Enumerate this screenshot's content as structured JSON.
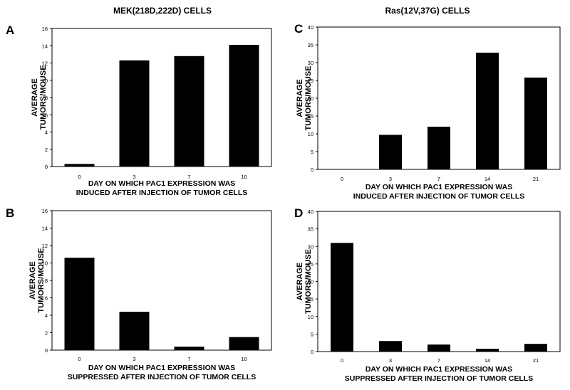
{
  "titles": {
    "left": "MEK(218D,222D) CELLS",
    "right": "Ras(12V,37G) CELLS"
  },
  "chart_data": [
    {
      "panel": "A",
      "type": "bar",
      "categories": [
        "0",
        "3",
        "7",
        "10"
      ],
      "values": [
        0.3,
        12.3,
        12.8,
        14.1
      ],
      "ylim": [
        0,
        16
      ],
      "yticks": [
        0,
        2,
        4,
        6,
        8,
        10,
        12,
        14,
        16
      ],
      "ylabel": [
        "AVERAGE",
        "TUMORS/MOUSE"
      ],
      "xlabel": [
        "DAY ON WHICH PAC1 EXPRESSION WAS",
        "INDUCED AFTER INJECTION OF TUMOR CELLS"
      ]
    },
    {
      "panel": "B",
      "type": "bar",
      "categories": [
        "0",
        "3",
        "7",
        "10"
      ],
      "values": [
        10.6,
        4.4,
        0.4,
        1.5
      ],
      "ylim": [
        0,
        16
      ],
      "yticks": [
        0,
        2,
        4,
        6,
        8,
        10,
        12,
        14,
        16
      ],
      "ylabel": [
        "AVERAGE",
        "TUMORS/MOUSE"
      ],
      "xlabel": [
        "DAY ON WHICH PAC1 EXPRESSION WAS",
        "SUPPRESSED AFTER INJECTION OF TUMOR CELLS"
      ]
    },
    {
      "panel": "C",
      "type": "bar",
      "categories": [
        "0",
        "3",
        "7",
        "14",
        "21"
      ],
      "values": [
        0,
        9.7,
        12.0,
        32.8,
        25.8
      ],
      "ylim": [
        0,
        40
      ],
      "yticks": [
        0,
        5,
        10,
        15,
        20,
        25,
        30,
        35,
        40
      ],
      "ylabel": [
        "AVERAGE",
        "TUMORS/MOUSE"
      ],
      "xlabel": [
        "DAY ON WHICH PAC1 EXPRESSION WAS",
        "INDUCED AFTER INJECTION OF TUMOR CELLS"
      ]
    },
    {
      "panel": "D",
      "type": "bar",
      "categories": [
        "0",
        "3",
        "7",
        "14",
        "21"
      ],
      "values": [
        31.0,
        3.0,
        2.0,
        0.8,
        2.2
      ],
      "ylim": [
        0,
        40
      ],
      "yticks": [
        0,
        5,
        10,
        15,
        20,
        25,
        30,
        35,
        40
      ],
      "ylabel": [
        "AVERAGE",
        "TUMORS/MOUSE"
      ],
      "xlabel": [
        "DAY ON WHICH PAC1 EXPRESSION WAS",
        "SUPPRESSED AFTER INJECTION OF TUMOR CELLS"
      ]
    }
  ]
}
